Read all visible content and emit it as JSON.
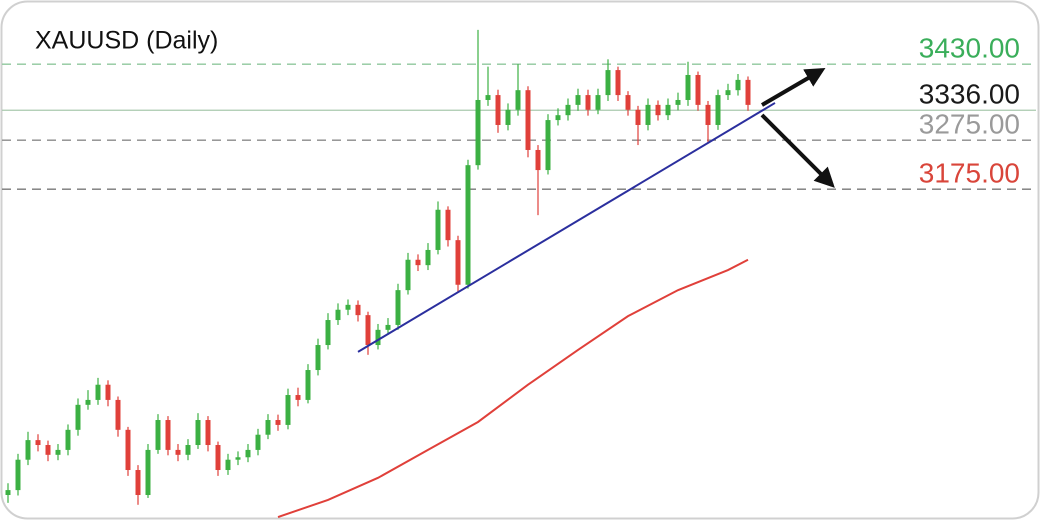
{
  "chart_data": {
    "type": "candlestick",
    "title": "XAUUSD (Daily)",
    "ylim": [
      2500,
      3561
    ],
    "up_color": "#3cb043",
    "down_color": "#e0403a",
    "open": [
      2551,
      2561,
      2623,
      2663,
      2653,
      2633,
      2643,
      2684,
      2735,
      2745,
      2776,
      2745,
      2684,
      2602,
      2551,
      2643,
      2704,
      2643,
      2633,
      2653,
      2704,
      2653,
      2602,
      2623,
      2628,
      2643,
      2674,
      2704,
      2694,
      2755,
      2745,
      2806,
      2857,
      2908,
      2929,
      2939,
      2918,
      2857,
      2888,
      2898,
      2969,
      3031,
      3020,
      3051,
      3133,
      3071,
      2980,
      3224,
      3357,
      3367,
      3306,
      3337,
      3377,
      3255,
      3214,
      3316,
      3326,
      3347,
      3367,
      3337,
      3367,
      3418,
      3367,
      3337,
      3306,
      3347,
      3326,
      3347,
      3357,
      3408,
      3347,
      3306,
      3367,
      3377,
      3398
    ],
    "high": [
      2575,
      2635,
      2680,
      2675,
      2662,
      2655,
      2695,
      2748,
      2765,
      2790,
      2785,
      2752,
      2690,
      2612,
      2655,
      2716,
      2712,
      2655,
      2665,
      2718,
      2712,
      2660,
      2635,
      2640,
      2655,
      2686,
      2716,
      2715,
      2768,
      2770,
      2818,
      2870,
      2922,
      2942,
      2950,
      2948,
      2925,
      2900,
      2912,
      2982,
      3045,
      3042,
      3065,
      3150,
      3140,
      3080,
      3235,
      3500,
      3425,
      3378,
      3350,
      3430,
      3385,
      3265,
      3328,
      3340,
      3360,
      3380,
      3378,
      3380,
      3440,
      3425,
      3375,
      3345,
      3360,
      3356,
      3360,
      3372,
      3435,
      3415,
      3355,
      3378,
      3390,
      3410,
      3405
    ],
    "low": [
      2535,
      2550,
      2612,
      2640,
      2620,
      2622,
      2632,
      2672,
      2725,
      2735,
      2732,
      2670,
      2590,
      2531,
      2545,
      2635,
      2632,
      2620,
      2622,
      2645,
      2640,
      2590,
      2592,
      2612,
      2618,
      2632,
      2665,
      2682,
      2685,
      2732,
      2738,
      2795,
      2848,
      2898,
      2918,
      2905,
      2837,
      2848,
      2878,
      2888,
      2960,
      3008,
      3010,
      3042,
      3058,
      2965,
      2972,
      3215,
      3345,
      3290,
      3295,
      3325,
      3240,
      3122,
      3205,
      3305,
      3315,
      3335,
      3325,
      3328,
      3355,
      3355,
      3325,
      3265,
      3295,
      3315,
      3316,
      3336,
      3345,
      3335,
      3270,
      3296,
      3357,
      3366,
      3335
    ],
    "close": [
      2561,
      2623,
      2663,
      2653,
      2633,
      2643,
      2684,
      2735,
      2745,
      2776,
      2745,
      2684,
      2602,
      2551,
      2643,
      2704,
      2643,
      2633,
      2653,
      2704,
      2653,
      2602,
      2623,
      2628,
      2643,
      2674,
      2704,
      2694,
      2755,
      2745,
      2806,
      2857,
      2908,
      2929,
      2939,
      2918,
      2857,
      2888,
      2898,
      2969,
      3031,
      3020,
      3051,
      3133,
      3071,
      2980,
      3224,
      3357,
      3367,
      3306,
      3337,
      3377,
      3255,
      3214,
      3316,
      3326,
      3347,
      3367,
      3337,
      3367,
      3418,
      3367,
      3337,
      3306,
      3347,
      3326,
      3347,
      3357,
      3408,
      3347,
      3306,
      3367,
      3377,
      3398,
      3347
    ],
    "moving_average": {
      "color": "#e0403a",
      "x": [
        27,
        32,
        37,
        42,
        47,
        52,
        57,
        62,
        67,
        72,
        74
      ],
      "values": [
        2506,
        2541,
        2586,
        2643,
        2700,
        2776,
        2847,
        2916,
        2969,
        3010,
        3031
      ]
    },
    "trend_line": {
      "color": "#2b2f9e",
      "x": [
        35,
        76.7
      ],
      "values": [
        2843,
        3351
      ]
    },
    "levels": [
      {
        "value": 3430,
        "label": "3430.00",
        "color": "#3aae5a",
        "line_color": "#8fc79c",
        "dashed": true
      },
      {
        "value": 3336,
        "label": "3336.00",
        "color": "#1a1a1a",
        "line_color": "#a9c9ae",
        "dashed": false
      },
      {
        "value": 3275,
        "label": "3275.00",
        "color": "#9a9a9a",
        "line_color": "#8a8a8a",
        "dashed": true
      },
      {
        "value": 3175,
        "label": "3175.00",
        "color": "#d9453a",
        "line_color": "#777777",
        "dashed": true
      }
    ]
  }
}
